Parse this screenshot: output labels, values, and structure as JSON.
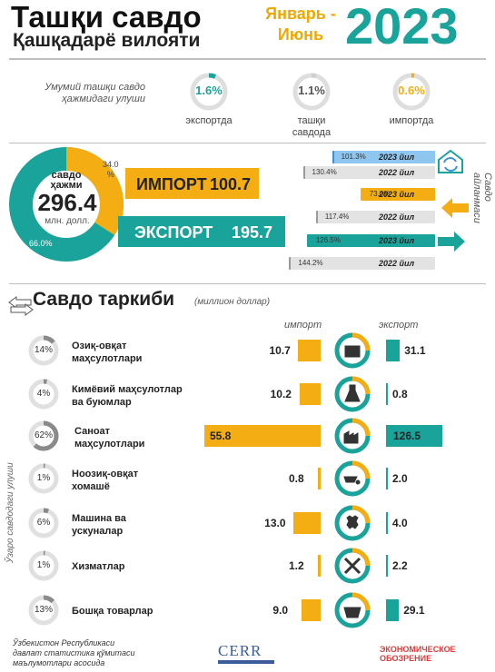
{
  "header": {
    "title": "Ташқи савдо",
    "subtitle": "Қашқадарё вилояти",
    "period_line1": "Январь -",
    "period_line2": "Июнь",
    "year": "2023"
  },
  "share": {
    "label_line1": "Умумий ташқи савдо",
    "label_line2": "ҳажмидаги улуши",
    "items": [
      {
        "value": "1.6%",
        "caption_line1": "экспортда",
        "caption_line2": "",
        "fraction": 0.016
      },
      {
        "value": "1.1%",
        "caption_line1": "ташқи",
        "caption_line2": "савдода",
        "fraction": 0.011
      },
      {
        "value": "0.6%",
        "caption_line1": "импортда",
        "caption_line2": "",
        "fraction": 0.006
      }
    ]
  },
  "total": {
    "label_line1": "савдо",
    "label_line2": "ҳажми",
    "value": "296.4",
    "unit": "млн. долл.",
    "import_pct": "34.0",
    "import_pct_sign": "%",
    "export_pct": "66.0%",
    "import_fraction": 0.34
  },
  "big_bars": {
    "import_label": "ИМПОРТ",
    "import_value": "100.7",
    "export_label": "ЭКСПОРТ",
    "export_value": "195.7"
  },
  "dynamics": {
    "side_label": "Савдо айланмаси",
    "groups": [
      {
        "name": "trade",
        "rows": [
          {
            "pct": "101.3%",
            "year": "2023 йил",
            "value": 101.3,
            "current": true
          },
          {
            "pct": "130.4%",
            "year": "2022 йил",
            "value": 130.4,
            "current": false
          }
        ]
      },
      {
        "name": "import",
        "rows": [
          {
            "pct": "73.0%",
            "year": "2023 йил",
            "value": 73.0,
            "current": true
          },
          {
            "pct": "117.4%",
            "year": "2022 йил",
            "value": 117.4,
            "current": false
          }
        ]
      },
      {
        "name": "export",
        "rows": [
          {
            "pct": "126.5%",
            "year": "2023 йил",
            "value": 126.5,
            "current": true
          },
          {
            "pct": "144.2%",
            "year": "2022 йил",
            "value": 144.2,
            "current": false
          }
        ]
      }
    ]
  },
  "structure": {
    "title": "Савдо таркиби",
    "unit": "(миллион доллар)",
    "import_header": "импорт",
    "export_header": "экспорт",
    "side_label": "Ўзаро савдодаги улуши"
  },
  "chart_data": {
    "type": "bar",
    "categories": [
      "Озиқ-овқат маҳсулотлари",
      "Кимёвий маҳсулотлар ва буюмлар",
      "Саноат маҳсулотлари",
      "Ноозиқ-овқат хомашё",
      "Машина ва ускуналар",
      "Хизматлар",
      "Бошқа товарлар"
    ],
    "category_lines": [
      [
        "Озиқ-овқат",
        "маҳсулотлари"
      ],
      [
        "Кимёвий маҳсулотлар",
        "ва буюмлар"
      ],
      [
        "Саноат",
        "маҳсулотлари"
      ],
      [
        "Ноозиқ-овқат",
        "хомашё"
      ],
      [
        "Машина ва",
        "ускуналар"
      ],
      [
        "Хизматлар",
        ""
      ],
      [
        "Бошқа товарлар",
        ""
      ]
    ],
    "shares": [
      "14%",
      "4%",
      "62%",
      "1%",
      "6%",
      "1%",
      "13%"
    ],
    "share_values": [
      14,
      4,
      62,
      1,
      6,
      1,
      13
    ],
    "icons": [
      "food-icon",
      "flask-icon",
      "factory-icon",
      "wheelbarrow-icon",
      "gears-icon",
      "tools-icon",
      "basket-icon"
    ],
    "series": [
      {
        "name": "импорт",
        "values": [
          10.7,
          10.2,
          55.8,
          0.8,
          13.0,
          1.2,
          9.0
        ],
        "labels": [
          "10.7",
          "10.2",
          "55.8",
          "0.8",
          "13.0",
          "1.2",
          "9.0"
        ]
      },
      {
        "name": "экспорт",
        "values": [
          31.1,
          0.8,
          126.5,
          2.0,
          4.0,
          2.2,
          29.1
        ],
        "labels": [
          "31.1",
          "0.8",
          "126.5",
          "2.0",
          "4.0",
          "2.2",
          "29.1"
        ]
      }
    ]
  },
  "colors": {
    "teal": "#1aa39a",
    "orange": "#f4ae13",
    "grey": "#cfcfcf",
    "blue": "#3a8fd8"
  },
  "footer": {
    "line1": "Ўзбекистон Республикаси",
    "line2": "давлат статистика қўмитаси",
    "line3": "маълумотлари асосида",
    "cerr": "CERR",
    "eo_line1": "ЭКОНОМИЧЕСКОЕ",
    "eo_line2": "ОБОЗРЕНИЕ"
  }
}
